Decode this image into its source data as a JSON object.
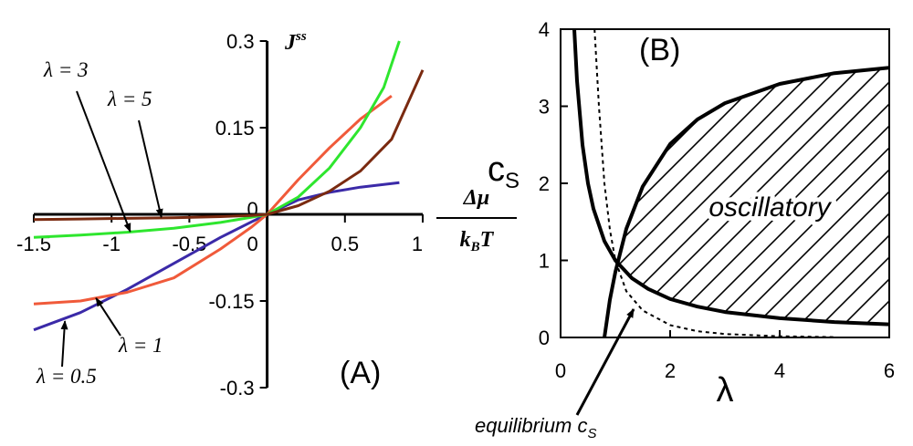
{
  "chart_data": [
    {
      "type": "line",
      "panel_label": "(A)",
      "ylabel": "J",
      "ylabel_sup": "ss",
      "xlabel_num": "Δμ",
      "xlabel_den_k": "k",
      "xlabel_den_sub": "B",
      "xlabel_den_t": "T",
      "xlim": [
        -1.5,
        1
      ],
      "ylim": [
        -0.3,
        0.3
      ],
      "xticks": [
        "-1.5",
        "-1",
        "-0.5",
        "0",
        "0.5",
        "1"
      ],
      "yticks": [
        "-0.3",
        "-0.15",
        "0.15",
        "0.3"
      ],
      "series": [
        {
          "name": "λ = 0.5",
          "color": "#3b2aa8",
          "x": [
            -1.5,
            -1.2,
            -0.9,
            -0.6,
            -0.3,
            -0.1,
            0,
            0.2,
            0.4,
            0.6,
            0.85
          ],
          "y": [
            -0.2,
            -0.17,
            -0.13,
            -0.085,
            -0.04,
            -0.013,
            0,
            0.025,
            0.038,
            0.047,
            0.055
          ]
        },
        {
          "name": "λ = 1",
          "color": "#f05a3a",
          "x": [
            -1.5,
            -1.2,
            -0.9,
            -0.6,
            -0.3,
            -0.1,
            0,
            0.2,
            0.4,
            0.6,
            0.8
          ],
          "y": [
            -0.155,
            -0.15,
            -0.135,
            -0.11,
            -0.06,
            -0.022,
            0,
            0.06,
            0.115,
            0.165,
            0.205
          ]
        },
        {
          "name": "λ = 3",
          "color": "#2ee62e",
          "x": [
            -1.5,
            -1.2,
            -0.9,
            -0.6,
            -0.3,
            -0.1,
            0,
            0.2,
            0.4,
            0.6,
            0.75,
            0.85
          ],
          "y": [
            -0.04,
            -0.036,
            -0.031,
            -0.024,
            -0.014,
            -0.005,
            0,
            0.03,
            0.08,
            0.15,
            0.22,
            0.3
          ]
        },
        {
          "name": "λ = 5",
          "color": "#7a2a10",
          "x": [
            -1.5,
            -1.2,
            -0.9,
            -0.6,
            -0.3,
            -0.1,
            0,
            0.2,
            0.4,
            0.6,
            0.8,
            1.0
          ],
          "y": [
            -0.009,
            -0.008,
            -0.007,
            -0.006,
            -0.004,
            -0.002,
            0,
            0.015,
            0.04,
            0.075,
            0.13,
            0.25
          ]
        }
      ],
      "annotations": [
        {
          "text": "λ = 3",
          "arrow_to_x": -0.88,
          "arrow_to_y": -0.03
        },
        {
          "text": "λ = 5",
          "arrow_to_x": -0.68,
          "arrow_to_y": -0.005
        },
        {
          "text": "λ = 1",
          "arrow_to_x": -1.1,
          "arrow_to_y": -0.145
        },
        {
          "text": "λ = 0.5",
          "arrow_to_x": -1.3,
          "arrow_to_y": -0.185
        }
      ]
    },
    {
      "type": "line",
      "panel_label": "(B)",
      "ylabel": "c",
      "ylabel_sub": "S",
      "xlabel": "λ",
      "xlim": [
        0,
        6
      ],
      "ylim": [
        0,
        4
      ],
      "xticks": [
        "0",
        "2",
        "4",
        "6"
      ],
      "yticks": [
        "0",
        "1",
        "2",
        "3",
        "4"
      ],
      "region_label": "oscillatory",
      "annotation": "equilibrium c",
      "annotation_sub": "S",
      "series": [
        {
          "style": "thick",
          "x": [
            0.25,
            0.3,
            0.4,
            0.5,
            0.6,
            0.8,
            1.0,
            1.3,
            1.6,
            2,
            2.5,
            3,
            4,
            5,
            6
          ],
          "y": [
            4.0,
            3.33,
            2.5,
            2.0,
            1.67,
            1.25,
            1.0,
            0.77,
            0.63,
            0.5,
            0.4,
            0.33,
            0.25,
            0.2,
            0.17
          ]
        },
        {
          "style": "thick",
          "x": [
            0.8,
            0.9,
            1.0,
            1.2,
            1.5,
            2,
            2.5,
            3,
            4,
            5,
            6
          ],
          "y": [
            0.0,
            0.49,
            0.85,
            1.41,
            1.96,
            2.51,
            2.83,
            3.04,
            3.29,
            3.43,
            3.5
          ]
        },
        {
          "style": "dashed",
          "x": [
            0.62,
            0.7,
            0.8,
            0.9,
            1.0,
            1.2,
            1.5,
            2,
            2.5,
            3,
            4,
            5
          ],
          "y": [
            4.0,
            3.0,
            2.0,
            1.4,
            1.0,
            0.6,
            0.35,
            0.16,
            0.08,
            0.045,
            0.015,
            0.005
          ]
        }
      ]
    }
  ]
}
